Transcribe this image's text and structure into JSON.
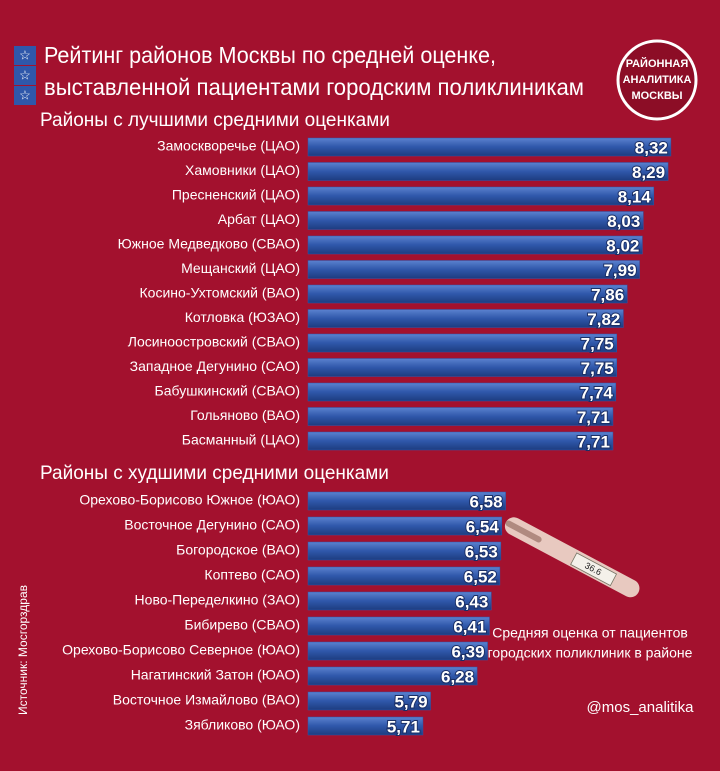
{
  "header": {
    "title_lines": [
      "Рейтинг районов Москвы по средней оценке,",
      "выставленной пациентами городским поликлиникам"
    ],
    "logo_lines": [
      "РАЙОННАЯ",
      "АНАЛИТИКА",
      "МОСКВЫ"
    ]
  },
  "chart_data": [
    {
      "type": "bar",
      "orientation": "horizontal",
      "title": "Районы с лучшими средними оценками",
      "categories": [
        "Замоскворечье (ЦАО)",
        "Хамовники (ЦАО)",
        "Пресненский (ЦАО)",
        "Арбат (ЦАО)",
        "Южное Медведково (СВАО)",
        "Мещанский (ЦАО)",
        "Косино-Ухтомский (ВАО)",
        "Котловка (ЮЗАО)",
        "Лосиноостровский (СВАО)",
        "Западное Дегунино (САО)",
        "Бабушкинский (СВАО)",
        "Гольяново (ВАО)",
        "Басманный (ЦАО)"
      ],
      "values": [
        8.32,
        8.29,
        8.14,
        8.03,
        8.02,
        7.99,
        7.86,
        7.82,
        7.75,
        7.75,
        7.74,
        7.71,
        7.71
      ],
      "value_labels": [
        "8,32",
        "8,29",
        "8,14",
        "8,03",
        "8,02",
        "7,99",
        "7,86",
        "7,82",
        "7,75",
        "7,75",
        "7,74",
        "7,71",
        "7,71"
      ],
      "color": "#2f57aa",
      "xlim": [
        4.5,
        8.5
      ]
    },
    {
      "type": "bar",
      "orientation": "horizontal",
      "title": "Районы с худшими средними оценками",
      "categories": [
        "Орехово-Борисово Южное (ЮАО)",
        "Восточное Дегунино (САО)",
        "Богородское (ВАО)",
        "Коптево (САО)",
        "Ново-Переделкино (ЗАО)",
        "Бибирево (СВАО)",
        "Орехово-Борисово Северное (ЮАО)",
        "Нагатинский Затон (ЮАО)",
        "Восточное Измайлово (ВАО)",
        "Зябликово (ЮАО)"
      ],
      "values": [
        6.58,
        6.54,
        6.53,
        6.52,
        6.43,
        6.41,
        6.39,
        6.28,
        5.79,
        5.71
      ],
      "value_labels": [
        "6,58",
        "6,54",
        "6,53",
        "6,52",
        "6,43",
        "6,41",
        "6,39",
        "6,28",
        "5,79",
        "5,71"
      ],
      "color": "#2f57aa",
      "xlim": [
        4.5,
        8.5
      ]
    }
  ],
  "source": "Источник: Мосгорздрав",
  "thermometer_reading": "36.6",
  "caption_lines": [
    "Средняя оценка от пациентов",
    "городских поликлиник в районе"
  ],
  "handle": "@mos_analitika"
}
